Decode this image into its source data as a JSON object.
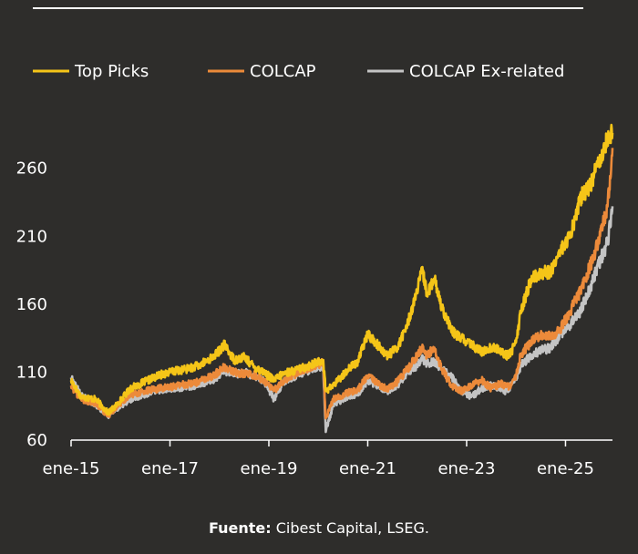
{
  "chart_data": {
    "type": "line",
    "title": "",
    "xlabel": "",
    "ylabel": "",
    "ylim": [
      60,
      300
    ],
    "yticks": [
      60,
      110,
      160,
      210,
      260
    ],
    "xlim": [
      2015.0,
      2026.0
    ],
    "xticks": [
      {
        "label": "ene-15",
        "x": 2015.0
      },
      {
        "label": "ene-17",
        "x": 2017.0
      },
      {
        "label": "ene-19",
        "x": 2019.0
      },
      {
        "label": "ene-21",
        "x": 2021.0
      },
      {
        "label": "ene-23",
        "x": 2023.0
      },
      {
        "label": "ene-25",
        "x": 2025.0
      }
    ],
    "legend_position": "top",
    "series": [
      {
        "name": "Top Picks",
        "color": "#f5c518",
        "points": [
          [
            2015.0,
            104
          ],
          [
            2015.2,
            92
          ],
          [
            2015.5,
            90
          ],
          [
            2015.75,
            80
          ],
          [
            2015.9,
            85
          ],
          [
            2016.2,
            98
          ],
          [
            2016.5,
            103
          ],
          [
            2016.8,
            108
          ],
          [
            2017.0,
            110
          ],
          [
            2017.3,
            112
          ],
          [
            2017.6,
            115
          ],
          [
            2017.9,
            122
          ],
          [
            2018.1,
            130
          ],
          [
            2018.3,
            119
          ],
          [
            2018.5,
            121
          ],
          [
            2018.7,
            114
          ],
          [
            2018.9,
            110
          ],
          [
            2019.1,
            104
          ],
          [
            2019.3,
            109
          ],
          [
            2019.6,
            112
          ],
          [
            2019.9,
            116
          ],
          [
            2020.1,
            119
          ],
          [
            2020.15,
            96
          ],
          [
            2020.3,
            100
          ],
          [
            2020.6,
            112
          ],
          [
            2020.8,
            118
          ],
          [
            2021.0,
            138
          ],
          [
            2021.2,
            130
          ],
          [
            2021.4,
            122
          ],
          [
            2021.6,
            128
          ],
          [
            2021.8,
            145
          ],
          [
            2022.0,
            170
          ],
          [
            2022.1,
            185
          ],
          [
            2022.2,
            168
          ],
          [
            2022.35,
            178
          ],
          [
            2022.5,
            158
          ],
          [
            2022.7,
            140
          ],
          [
            2022.9,
            135
          ],
          [
            2023.1,
            130
          ],
          [
            2023.3,
            125
          ],
          [
            2023.5,
            128
          ],
          [
            2023.7,
            126
          ],
          [
            2023.8,
            122
          ],
          [
            2023.9,
            125
          ],
          [
            2024.0,
            132
          ],
          [
            2024.1,
            155
          ],
          [
            2024.3,
            178
          ],
          [
            2024.5,
            183
          ],
          [
            2024.7,
            184
          ],
          [
            2024.9,
            200
          ],
          [
            2025.1,
            210
          ],
          [
            2025.3,
            238
          ],
          [
            2025.5,
            248
          ],
          [
            2025.7,
            268
          ],
          [
            2025.85,
            282
          ],
          [
            2025.95,
            286
          ]
        ]
      },
      {
        "name": "COLCAP",
        "color": "#ec8a3a",
        "points": [
          [
            2015.0,
            100
          ],
          [
            2015.2,
            90
          ],
          [
            2015.5,
            87
          ],
          [
            2015.75,
            78
          ],
          [
            2015.9,
            84
          ],
          [
            2016.2,
            93
          ],
          [
            2016.5,
            96
          ],
          [
            2016.8,
            98
          ],
          [
            2017.0,
            99
          ],
          [
            2017.3,
            101
          ],
          [
            2017.6,
            103
          ],
          [
            2017.9,
            108
          ],
          [
            2018.1,
            114
          ],
          [
            2018.3,
            110
          ],
          [
            2018.5,
            109
          ],
          [
            2018.7,
            108
          ],
          [
            2018.9,
            104
          ],
          [
            2019.1,
            96
          ],
          [
            2019.3,
            104
          ],
          [
            2019.6,
            110
          ],
          [
            2019.9,
            115
          ],
          [
            2020.1,
            117
          ],
          [
            2020.15,
            76
          ],
          [
            2020.3,
            90
          ],
          [
            2020.6,
            95
          ],
          [
            2020.8,
            97
          ],
          [
            2021.0,
            107
          ],
          [
            2021.2,
            102
          ],
          [
            2021.4,
            97
          ],
          [
            2021.6,
            103
          ],
          [
            2021.8,
            112
          ],
          [
            2022.0,
            122
          ],
          [
            2022.1,
            128
          ],
          [
            2022.2,
            122
          ],
          [
            2022.35,
            128
          ],
          [
            2022.5,
            112
          ],
          [
            2022.7,
            100
          ],
          [
            2022.9,
            96
          ],
          [
            2023.1,
            100
          ],
          [
            2023.3,
            104
          ],
          [
            2023.5,
            98
          ],
          [
            2023.7,
            102
          ],
          [
            2023.8,
            99
          ],
          [
            2023.9,
            100
          ],
          [
            2024.0,
            108
          ],
          [
            2024.1,
            123
          ],
          [
            2024.3,
            132
          ],
          [
            2024.5,
            138
          ],
          [
            2024.7,
            136
          ],
          [
            2024.9,
            142
          ],
          [
            2025.1,
            155
          ],
          [
            2025.3,
            170
          ],
          [
            2025.5,
            188
          ],
          [
            2025.7,
            210
          ],
          [
            2025.85,
            232
          ],
          [
            2025.95,
            275
          ]
        ]
      },
      {
        "name": "COLCAP Ex-related",
        "color": "#c4c4c4",
        "points": [
          [
            2015.0,
            106
          ],
          [
            2015.2,
            93
          ],
          [
            2015.5,
            86
          ],
          [
            2015.75,
            78
          ],
          [
            2015.9,
            83
          ],
          [
            2016.2,
            90
          ],
          [
            2016.5,
            94
          ],
          [
            2016.8,
            97
          ],
          [
            2017.0,
            98
          ],
          [
            2017.3,
            99
          ],
          [
            2017.6,
            101
          ],
          [
            2017.9,
            105
          ],
          [
            2018.1,
            111
          ],
          [
            2018.3,
            108
          ],
          [
            2018.5,
            110
          ],
          [
            2018.7,
            107
          ],
          [
            2018.9,
            104
          ],
          [
            2019.1,
            90
          ],
          [
            2019.3,
            103
          ],
          [
            2019.6,
            108
          ],
          [
            2019.9,
            113
          ],
          [
            2020.1,
            114
          ],
          [
            2020.15,
            66
          ],
          [
            2020.3,
            86
          ],
          [
            2020.6,
            92
          ],
          [
            2020.8,
            94
          ],
          [
            2021.0,
            104
          ],
          [
            2021.2,
            100
          ],
          [
            2021.4,
            96
          ],
          [
            2021.6,
            100
          ],
          [
            2021.8,
            110
          ],
          [
            2022.0,
            115
          ],
          [
            2022.1,
            120
          ],
          [
            2022.2,
            116
          ],
          [
            2022.35,
            118
          ],
          [
            2022.5,
            112
          ],
          [
            2022.7,
            106
          ],
          [
            2022.9,
            96
          ],
          [
            2023.1,
            92
          ],
          [
            2023.3,
            98
          ],
          [
            2023.5,
            100
          ],
          [
            2023.7,
            98
          ],
          [
            2023.8,
            96
          ],
          [
            2023.9,
            100
          ],
          [
            2024.0,
            106
          ],
          [
            2024.1,
            115
          ],
          [
            2024.3,
            122
          ],
          [
            2024.5,
            126
          ],
          [
            2024.7,
            128
          ],
          [
            2024.9,
            138
          ],
          [
            2025.1,
            145
          ],
          [
            2025.3,
            155
          ],
          [
            2025.5,
            172
          ],
          [
            2025.7,
            192
          ],
          [
            2025.85,
            205
          ],
          [
            2025.95,
            232
          ]
        ]
      }
    ]
  },
  "legend": {
    "items": [
      "Top Picks",
      "COLCAP",
      "COLCAP Ex-related"
    ]
  },
  "source": {
    "label": "Fuente:",
    "text": " Cibest Capital, LSEG."
  }
}
